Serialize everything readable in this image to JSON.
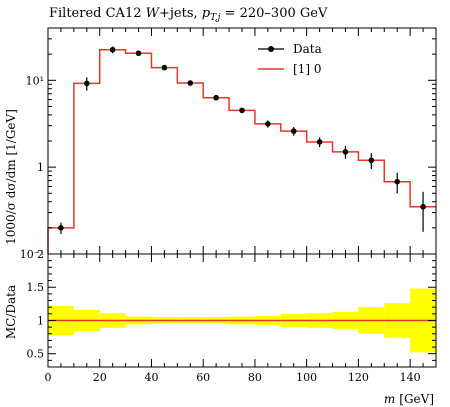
{
  "chart_data": [
    {
      "type": "line",
      "title": "Filtered CA12 W+jets, p_{T,j} = 220–300 GeV",
      "title_parts": {
        "prefix": "Filtered CA12 ",
        "w": "W",
        "mid": "+jets, ",
        "p": "p",
        "sub": "T,j",
        "suffix": " = 220–300 GeV"
      },
      "ylabel": "1000/σ dσ/dm [1/GeV]",
      "yscale": "log",
      "ylim": [
        0.1,
        40
      ],
      "xlim": [
        0,
        150
      ],
      "y_tick_labels": [
        "10⁻¹",
        "1",
        "10¹"
      ],
      "legend": {
        "placement": "top-right",
        "data_label": "Data",
        "mc_label": "[1] 0"
      },
      "colors": {
        "data": "#000000",
        "mc": "#e8362d"
      },
      "bin_edges": [
        0,
        10,
        20,
        30,
        40,
        50,
        60,
        70,
        80,
        90,
        100,
        110,
        120,
        130,
        140,
        150
      ],
      "series": [
        {
          "name": "Data",
          "x": [
            5,
            15,
            25,
            35,
            45,
            55,
            65,
            75,
            85,
            95,
            105,
            115,
            125,
            135,
            145
          ],
          "y": [
            0.2,
            9.2,
            22.5,
            20.5,
            14.0,
            9.3,
            6.3,
            4.5,
            3.15,
            2.6,
            1.95,
            1.5,
            1.2,
            0.68,
            0.35
          ],
          "yerr_low": [
            0.03,
            1.6,
            2.0,
            1.2,
            0.8,
            0.5,
            0.35,
            0.3,
            0.3,
            0.3,
            0.25,
            0.25,
            0.25,
            0.18,
            0.17
          ],
          "yerr_high": [
            0.03,
            1.6,
            2.0,
            1.2,
            0.8,
            0.5,
            0.35,
            0.3,
            0.3,
            0.3,
            0.25,
            0.25,
            0.25,
            0.18,
            0.17
          ]
        },
        {
          "name": "[1] 0",
          "y": [
            0.2,
            9.2,
            22.5,
            20.5,
            14.0,
            9.3,
            6.3,
            4.5,
            3.15,
            2.6,
            1.95,
            1.5,
            1.2,
            0.68,
            0.35
          ]
        }
      ]
    },
    {
      "type": "line",
      "ylabel": "MC/Data",
      "xlabel_var": "m",
      "xlabel_unit": "[GeV]",
      "ylim": [
        0.3,
        2.0
      ],
      "xlim": [
        0,
        150
      ],
      "y_ticks": [
        0.5,
        1.0,
        1.5,
        2.0
      ],
      "y_tick_labels": [
        "0.5",
        "1",
        "1.5",
        "2"
      ],
      "x_ticks": [
        0,
        20,
        40,
        60,
        80,
        100,
        120,
        140
      ],
      "x_tick_labels": [
        "0",
        "20",
        "40",
        "60",
        "80",
        "100",
        "120",
        "140"
      ],
      "colors": {
        "band": "#ffff00",
        "line": "#e8362d"
      },
      "bin_edges": [
        0,
        10,
        20,
        30,
        40,
        50,
        60,
        70,
        80,
        90,
        100,
        110,
        120,
        130,
        140,
        150
      ],
      "ratio": [
        1,
        1,
        1,
        1,
        1,
        1,
        1,
        1,
        1,
        1,
        1,
        1,
        1,
        1,
        1
      ],
      "band_low": [
        0.78,
        0.84,
        0.89,
        0.94,
        0.95,
        0.95,
        0.95,
        0.94,
        0.93,
        0.9,
        0.89,
        0.87,
        0.8,
        0.74,
        0.52
      ],
      "band_high": [
        1.22,
        1.16,
        1.11,
        1.06,
        1.05,
        1.05,
        1.05,
        1.06,
        1.07,
        1.1,
        1.11,
        1.13,
        1.2,
        1.26,
        1.48
      ]
    }
  ]
}
